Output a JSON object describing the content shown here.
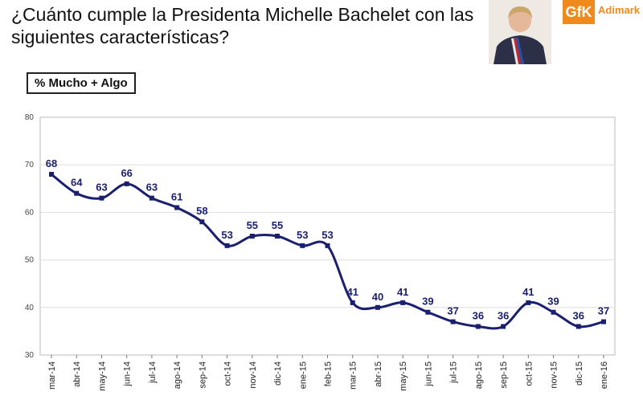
{
  "header": {
    "question": "¿Cuánto cumple la Presidenta Michelle Bachelet con las siguientes características?",
    "logo": {
      "mark": "GfK",
      "brand": "Adimark"
    }
  },
  "legend_label": "% Mucho + Algo",
  "colors": {
    "series": "#1a1f6e",
    "labels": "#1a1f6e",
    "grid": "#dddddd",
    "axis": "#777777",
    "logo": "#f08a1c"
  },
  "chart_data": {
    "type": "line",
    "x": [
      "mar-14",
      "abr-14",
      "may-14",
      "jun-14",
      "jul-14",
      "ago-14",
      "sep-14",
      "oct-14",
      "nov-14",
      "dic-14",
      "ene-15",
      "feb-15",
      "mar-15",
      "abr-15",
      "may-15",
      "jun-15",
      "jul-15",
      "ago-15",
      "sep-15",
      "oct-15",
      "nov-15",
      "dic-15",
      "ene-16"
    ],
    "series": [
      {
        "values": [
          68,
          64,
          63,
          66,
          63,
          61,
          58,
          53,
          55,
          55,
          53,
          53,
          41,
          40,
          41,
          39,
          37,
          36,
          36,
          41,
          39,
          36,
          37
        ]
      }
    ],
    "y_ticks": [
      30,
      40,
      50,
      60,
      70,
      80
    ],
    "ylim": [
      30,
      80
    ],
    "grid": true
  }
}
